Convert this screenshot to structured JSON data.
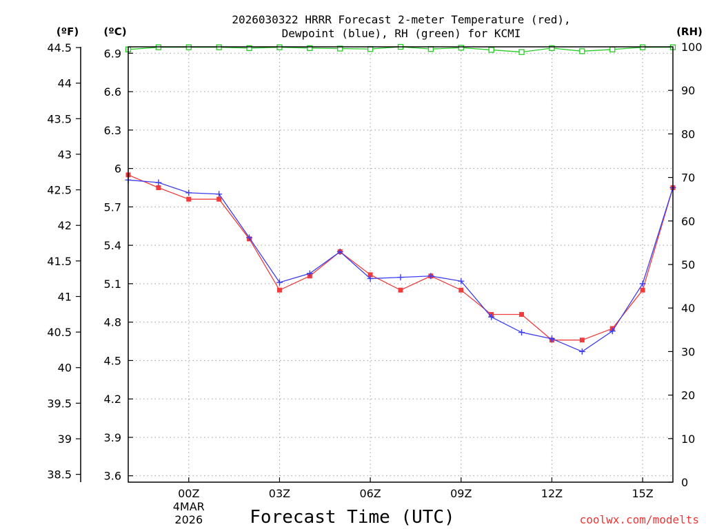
{
  "chart_data": {
    "type": "line",
    "title_line1": "2026030322 HRRR Forecast 2-meter Temperature (red),",
    "title_line2": "Dewpoint (blue), RH (green) for KCMI",
    "xlabel": "Forecast Time (UTC)",
    "credit": "coolwx.com/modelts",
    "left_unit_f": "(ºF)",
    "left_unit_c": "(ºC)",
    "right_unit": "(RH)",
    "x_hours": [
      -2,
      -1,
      0,
      1,
      2,
      3,
      4,
      5,
      6,
      7,
      8,
      9,
      10,
      11,
      12,
      13,
      14,
      15,
      16
    ],
    "xlim": [
      -2,
      16
    ],
    "x_ticks": [
      {
        "hour": 0,
        "label": "00Z",
        "date1": "4MAR",
        "date2": "2026"
      },
      {
        "hour": 3,
        "label": "03Z"
      },
      {
        "hour": 6,
        "label": "06Z"
      },
      {
        "hour": 9,
        "label": "09Z"
      },
      {
        "hour": 12,
        "label": "12Z"
      },
      {
        "hour": 15,
        "label": "15Z"
      }
    ],
    "ylim_c": [
      3.55,
      6.95
    ],
    "y_ticks_c": [
      "6.9",
      "6.6",
      "6.3",
      "6",
      "5.7",
      "5.4",
      "5.1",
      "4.8",
      "4.5",
      "4.2",
      "3.9",
      "3.6"
    ],
    "y_ticks_f": [
      "44.5",
      "44",
      "43.5",
      "43",
      "42.5",
      "42",
      "41.5",
      "41",
      "40.5",
      "40",
      "39.5",
      "39",
      "38.5"
    ],
    "ylim_rh": [
      0,
      100
    ],
    "y_ticks_rh": [
      "100",
      "90",
      "80",
      "70",
      "60",
      "50",
      "40",
      "30",
      "20",
      "10",
      "0"
    ],
    "series": [
      {
        "name": "Temperature",
        "color": "#f03c3c",
        "marker": "square",
        "values": [
          5.95,
          5.85,
          5.76,
          5.76,
          5.45,
          5.05,
          5.16,
          5.35,
          5.17,
          5.05,
          5.16,
          5.05,
          4.86,
          4.86,
          4.66,
          4.66,
          4.75,
          5.05,
          5.85
        ]
      },
      {
        "name": "Dewpoint",
        "color": "#3c3cf0",
        "marker": "plus",
        "values": [
          5.91,
          5.89,
          5.81,
          5.8,
          5.46,
          5.11,
          5.18,
          5.35,
          5.14,
          5.15,
          5.16,
          5.12,
          4.84,
          4.72,
          4.67,
          4.57,
          4.73,
          5.1,
          5.85
        ]
      },
      {
        "name": "RH",
        "color": "#22cc22",
        "marker": "open-square",
        "values": [
          99.4,
          99.9,
          99.9,
          99.9,
          99.7,
          99.9,
          99.7,
          99.6,
          99.5,
          100,
          99.5,
          99.8,
          99.3,
          98.8,
          99.7,
          99.0,
          99.4,
          99.9,
          99.9
        ]
      }
    ]
  }
}
